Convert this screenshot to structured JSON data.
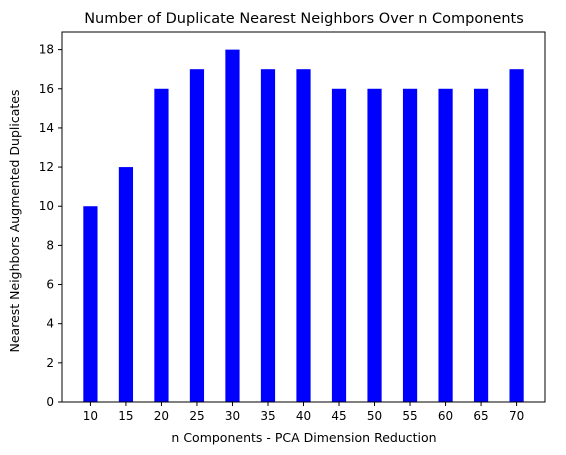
{
  "chart_data": {
    "type": "bar",
    "title": "Number of Duplicate Nearest Neighbors Over n Components",
    "xlabel": "n Components - PCA Dimension Reduction",
    "ylabel": "Nearest Neighbors Augmented Duplicates",
    "categories": [
      "10",
      "15",
      "20",
      "25",
      "30",
      "35",
      "40",
      "45",
      "50",
      "55",
      "60",
      "65",
      "70"
    ],
    "values": [
      10,
      12,
      16,
      17,
      18,
      17,
      17,
      16,
      16,
      16,
      16,
      16,
      17
    ],
    "ylim": [
      0,
      18.9
    ],
    "yticks": [
      0,
      2,
      4,
      6,
      8,
      10,
      12,
      14,
      16,
      18
    ],
    "bar_color": "#0000ff",
    "grid": false,
    "legend": "none"
  }
}
